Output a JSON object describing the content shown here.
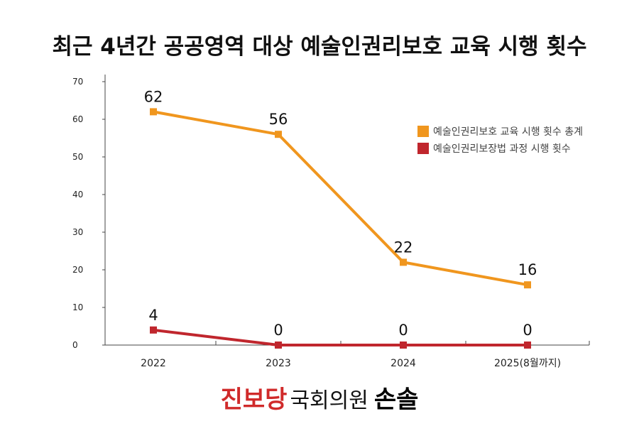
{
  "chart_data": {
    "type": "line",
    "title": "최근 4년간 공공영역 대상 예술인권리보호 교육 시행 횟수",
    "categories": [
      "2022",
      "2023",
      "2024",
      "2025(8월까지)"
    ],
    "series": [
      {
        "name": "예술인권리보호 교육 시행 횟수 총계",
        "values": [
          62,
          56,
          22,
          16
        ],
        "color": "#f0961e"
      },
      {
        "name": "예술인권리보장법 과정 시행 횟수",
        "values": [
          4,
          0,
          0,
          0
        ],
        "color": "#c0262d"
      }
    ],
    "ylim": [
      0,
      70
    ],
    "yticks": [
      0,
      10,
      20,
      30,
      40,
      50,
      60,
      70
    ],
    "grid": false,
    "legend": "top-right",
    "xlabel": "",
    "ylabel": ""
  },
  "footer": {
    "party": "진보당",
    "role": "국회의원",
    "name": "손솔"
  }
}
